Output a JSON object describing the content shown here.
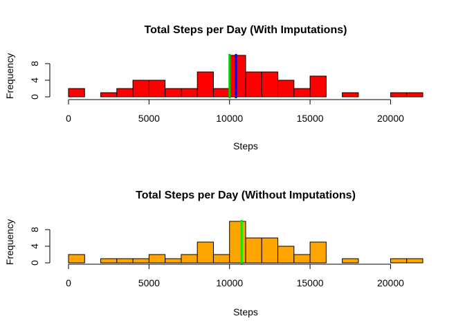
{
  "chart_data": [
    {
      "type": "bar",
      "title": "Total Steps per Day (With Imputations)",
      "xlabel": "Steps",
      "ylabel": "Frequency",
      "xlim": [
        0,
        22000
      ],
      "ylim": [
        0,
        10
      ],
      "x_ticks": [
        0,
        5000,
        10000,
        15000,
        20000
      ],
      "y_ticks": [
        0,
        4,
        8
      ],
      "bin_width": 1000,
      "bin_starts": [
        0,
        1000,
        2000,
        3000,
        4000,
        5000,
        6000,
        7000,
        8000,
        9000,
        10000,
        11000,
        12000,
        13000,
        14000,
        15000,
        16000,
        17000,
        18000,
        19000,
        20000,
        21000
      ],
      "values": [
        2,
        0,
        1,
        2,
        4,
        4,
        2,
        2,
        6,
        2,
        10,
        6,
        6,
        4,
        2,
        5,
        0,
        1,
        0,
        0,
        1,
        1
      ],
      "bar_color": "#ff0000",
      "reference_lines": [
        {
          "x": 10000,
          "color": "#00cc00"
        },
        {
          "x": 10400,
          "color": "#0000ff"
        }
      ]
    },
    {
      "type": "bar",
      "title": "Total Steps per Day (Without Imputations)",
      "xlabel": "Steps",
      "ylabel": "Frequency",
      "xlim": [
        0,
        22000
      ],
      "ylim": [
        0,
        10
      ],
      "x_ticks": [
        0,
        5000,
        10000,
        15000,
        20000
      ],
      "y_ticks": [
        0,
        4,
        8
      ],
      "bin_width": 1000,
      "bin_starts": [
        0,
        1000,
        2000,
        3000,
        4000,
        5000,
        6000,
        7000,
        8000,
        9000,
        10000,
        11000,
        12000,
        13000,
        14000,
        15000,
        16000,
        17000,
        18000,
        19000,
        20000,
        21000
      ],
      "values": [
        2,
        0,
        1,
        1,
        1,
        2,
        1,
        2,
        5,
        2,
        10,
        6,
        6,
        4,
        2,
        5,
        0,
        1,
        0,
        0,
        1,
        1
      ],
      "bar_color": "#ffa500",
      "reference_lines": [
        {
          "x": 10750,
          "color": "#00ee00"
        }
      ]
    }
  ]
}
